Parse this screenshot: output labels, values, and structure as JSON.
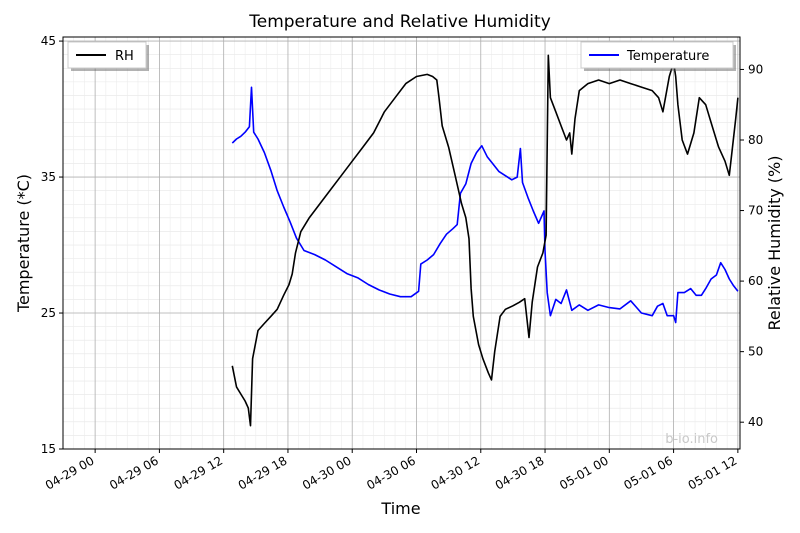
{
  "chart_data": {
    "type": "line",
    "title": "Temperature and Relative Humidity",
    "xlabel": "Time",
    "ylabel_left": "Temperature (*C)",
    "ylabel_right": "Relative Humidity (%)",
    "watermark": "b-io.info",
    "x_tick_labels": [
      "04-29 00",
      "04-29 06",
      "04-29 12",
      "04-29 18",
      "04-30 00",
      "04-30 06",
      "04-30 12",
      "04-30 18",
      "05-01 00",
      "05-01 06",
      "05-01 12"
    ],
    "x_ticks_hours": [
      0,
      6,
      12,
      18,
      24,
      30,
      36,
      42,
      48,
      54,
      60
    ],
    "xlim_hours": [
      -3,
      60.2
    ],
    "ylim_left": [
      15,
      45.3
    ],
    "yticks_left": [
      15,
      25,
      35,
      45
    ],
    "ylim_right": [
      36.2,
      94.6
    ],
    "yticks_right": [
      40,
      50,
      60,
      70,
      80,
      90
    ],
    "grid": true,
    "series": [
      {
        "name": "RH",
        "axis": "right",
        "color": "#000000",
        "legend_position": "top-left",
        "points": [
          [
            12.8,
            48
          ],
          [
            13.2,
            45
          ],
          [
            13.6,
            44
          ],
          [
            14.0,
            43
          ],
          [
            14.3,
            42
          ],
          [
            14.5,
            39.5
          ],
          [
            14.7,
            49
          ],
          [
            15.2,
            53
          ],
          [
            15.8,
            54
          ],
          [
            16.4,
            55
          ],
          [
            17.0,
            56
          ],
          [
            17.6,
            58
          ],
          [
            18.1,
            59.5
          ],
          [
            18.4,
            61
          ],
          [
            18.7,
            64
          ],
          [
            19.2,
            67
          ],
          [
            20.0,
            69
          ],
          [
            21.0,
            71
          ],
          [
            22.0,
            73
          ],
          [
            23.0,
            75
          ],
          [
            24.0,
            77
          ],
          [
            25.0,
            79
          ],
          [
            26.0,
            81
          ],
          [
            27.0,
            84
          ],
          [
            28.0,
            86
          ],
          [
            29.0,
            88
          ],
          [
            30.0,
            89
          ],
          [
            31.0,
            89.3
          ],
          [
            31.5,
            89
          ],
          [
            31.9,
            88.5
          ],
          [
            32.1,
            86
          ],
          [
            32.4,
            82
          ],
          [
            33.0,
            79
          ],
          [
            33.6,
            75
          ],
          [
            34.2,
            71
          ],
          [
            34.6,
            69
          ],
          [
            34.9,
            66
          ],
          [
            35.1,
            59
          ],
          [
            35.3,
            55
          ],
          [
            35.8,
            51
          ],
          [
            36.2,
            49
          ],
          [
            36.7,
            47
          ],
          [
            37.0,
            46
          ],
          [
            37.3,
            50
          ],
          [
            37.8,
            55
          ],
          [
            38.3,
            56
          ],
          [
            39.0,
            56.5
          ],
          [
            39.6,
            57
          ],
          [
            40.1,
            57.5
          ],
          [
            40.5,
            52
          ],
          [
            40.8,
            57
          ],
          [
            41.3,
            62
          ],
          [
            41.8,
            64
          ],
          [
            42.1,
            66.5
          ],
          [
            42.3,
            92
          ],
          [
            42.5,
            86
          ],
          [
            43.0,
            84
          ],
          [
            43.5,
            82
          ],
          [
            44.0,
            80
          ],
          [
            44.3,
            81
          ],
          [
            44.5,
            78
          ],
          [
            44.8,
            83
          ],
          [
            45.2,
            87
          ],
          [
            46.0,
            88
          ],
          [
            47.0,
            88.5
          ],
          [
            48.0,
            88
          ],
          [
            49.0,
            88.5
          ],
          [
            50.0,
            88
          ],
          [
            51.0,
            87.5
          ],
          [
            52.0,
            87
          ],
          [
            52.6,
            86
          ],
          [
            53.0,
            84
          ],
          [
            53.6,
            89
          ],
          [
            54.0,
            91
          ],
          [
            54.2,
            89
          ],
          [
            54.4,
            85
          ],
          [
            54.8,
            80
          ],
          [
            55.3,
            78
          ],
          [
            55.9,
            81
          ],
          [
            56.4,
            86
          ],
          [
            57.0,
            85
          ],
          [
            57.6,
            82
          ],
          [
            58.2,
            79
          ],
          [
            58.8,
            77
          ],
          [
            59.2,
            75
          ],
          [
            59.5,
            79
          ],
          [
            59.8,
            83
          ],
          [
            60.0,
            86
          ]
        ]
      },
      {
        "name": "Temperature",
        "axis": "left",
        "color": "#0000ff",
        "legend_position": "top-right",
        "points": [
          [
            12.8,
            37.5
          ],
          [
            13.2,
            37.8
          ],
          [
            13.6,
            38.0
          ],
          [
            14.0,
            38.3
          ],
          [
            14.4,
            38.7
          ],
          [
            14.6,
            41.6
          ],
          [
            14.8,
            38.3
          ],
          [
            15.2,
            37.8
          ],
          [
            15.8,
            36.8
          ],
          [
            16.4,
            35.5
          ],
          [
            17.0,
            34.0
          ],
          [
            17.6,
            32.8
          ],
          [
            18.2,
            31.7
          ],
          [
            18.8,
            30.5
          ],
          [
            19.5,
            29.6
          ],
          [
            20.5,
            29.3
          ],
          [
            21.5,
            28.9
          ],
          [
            22.5,
            28.4
          ],
          [
            23.5,
            27.9
          ],
          [
            24.5,
            27.6
          ],
          [
            25.5,
            27.1
          ],
          [
            26.5,
            26.7
          ],
          [
            27.5,
            26.4
          ],
          [
            28.5,
            26.2
          ],
          [
            29.5,
            26.2
          ],
          [
            30.2,
            26.6
          ],
          [
            30.4,
            28.6
          ],
          [
            31.0,
            28.9
          ],
          [
            31.6,
            29.3
          ],
          [
            32.2,
            30.1
          ],
          [
            32.8,
            30.8
          ],
          [
            33.4,
            31.2
          ],
          [
            33.8,
            31.5
          ],
          [
            34.1,
            33.8
          ],
          [
            34.6,
            34.5
          ],
          [
            35.1,
            36.0
          ],
          [
            35.6,
            36.8
          ],
          [
            36.1,
            37.3
          ],
          [
            36.6,
            36.5
          ],
          [
            37.1,
            36.0
          ],
          [
            37.7,
            35.4
          ],
          [
            38.3,
            35.1
          ],
          [
            38.9,
            34.8
          ],
          [
            39.4,
            35.0
          ],
          [
            39.7,
            37.1
          ],
          [
            39.9,
            34.6
          ],
          [
            40.4,
            33.5
          ],
          [
            40.9,
            32.5
          ],
          [
            41.4,
            31.6
          ],
          [
            41.9,
            32.5
          ],
          [
            42.0,
            29.6
          ],
          [
            42.2,
            26.5
          ],
          [
            42.5,
            24.8
          ],
          [
            43.0,
            26.0
          ],
          [
            43.5,
            25.7
          ],
          [
            44.0,
            26.7
          ],
          [
            44.5,
            25.2
          ],
          [
            45.2,
            25.6
          ],
          [
            46.0,
            25.2
          ],
          [
            47.0,
            25.6
          ],
          [
            48.0,
            25.4
          ],
          [
            49.0,
            25.3
          ],
          [
            50.0,
            25.9
          ],
          [
            51.0,
            25.0
          ],
          [
            52.0,
            24.8
          ],
          [
            52.5,
            25.5
          ],
          [
            53.0,
            25.7
          ],
          [
            53.4,
            24.8
          ],
          [
            54.0,
            24.8
          ],
          [
            54.2,
            24.3
          ],
          [
            54.4,
            26.5
          ],
          [
            55.0,
            26.5
          ],
          [
            55.6,
            26.8
          ],
          [
            56.1,
            26.3
          ],
          [
            56.6,
            26.3
          ],
          [
            57.0,
            26.8
          ],
          [
            57.5,
            27.5
          ],
          [
            58.0,
            27.8
          ],
          [
            58.4,
            28.7
          ],
          [
            58.8,
            28.2
          ],
          [
            59.2,
            27.5
          ],
          [
            59.6,
            27.0
          ],
          [
            60.0,
            26.6
          ]
        ]
      }
    ]
  }
}
